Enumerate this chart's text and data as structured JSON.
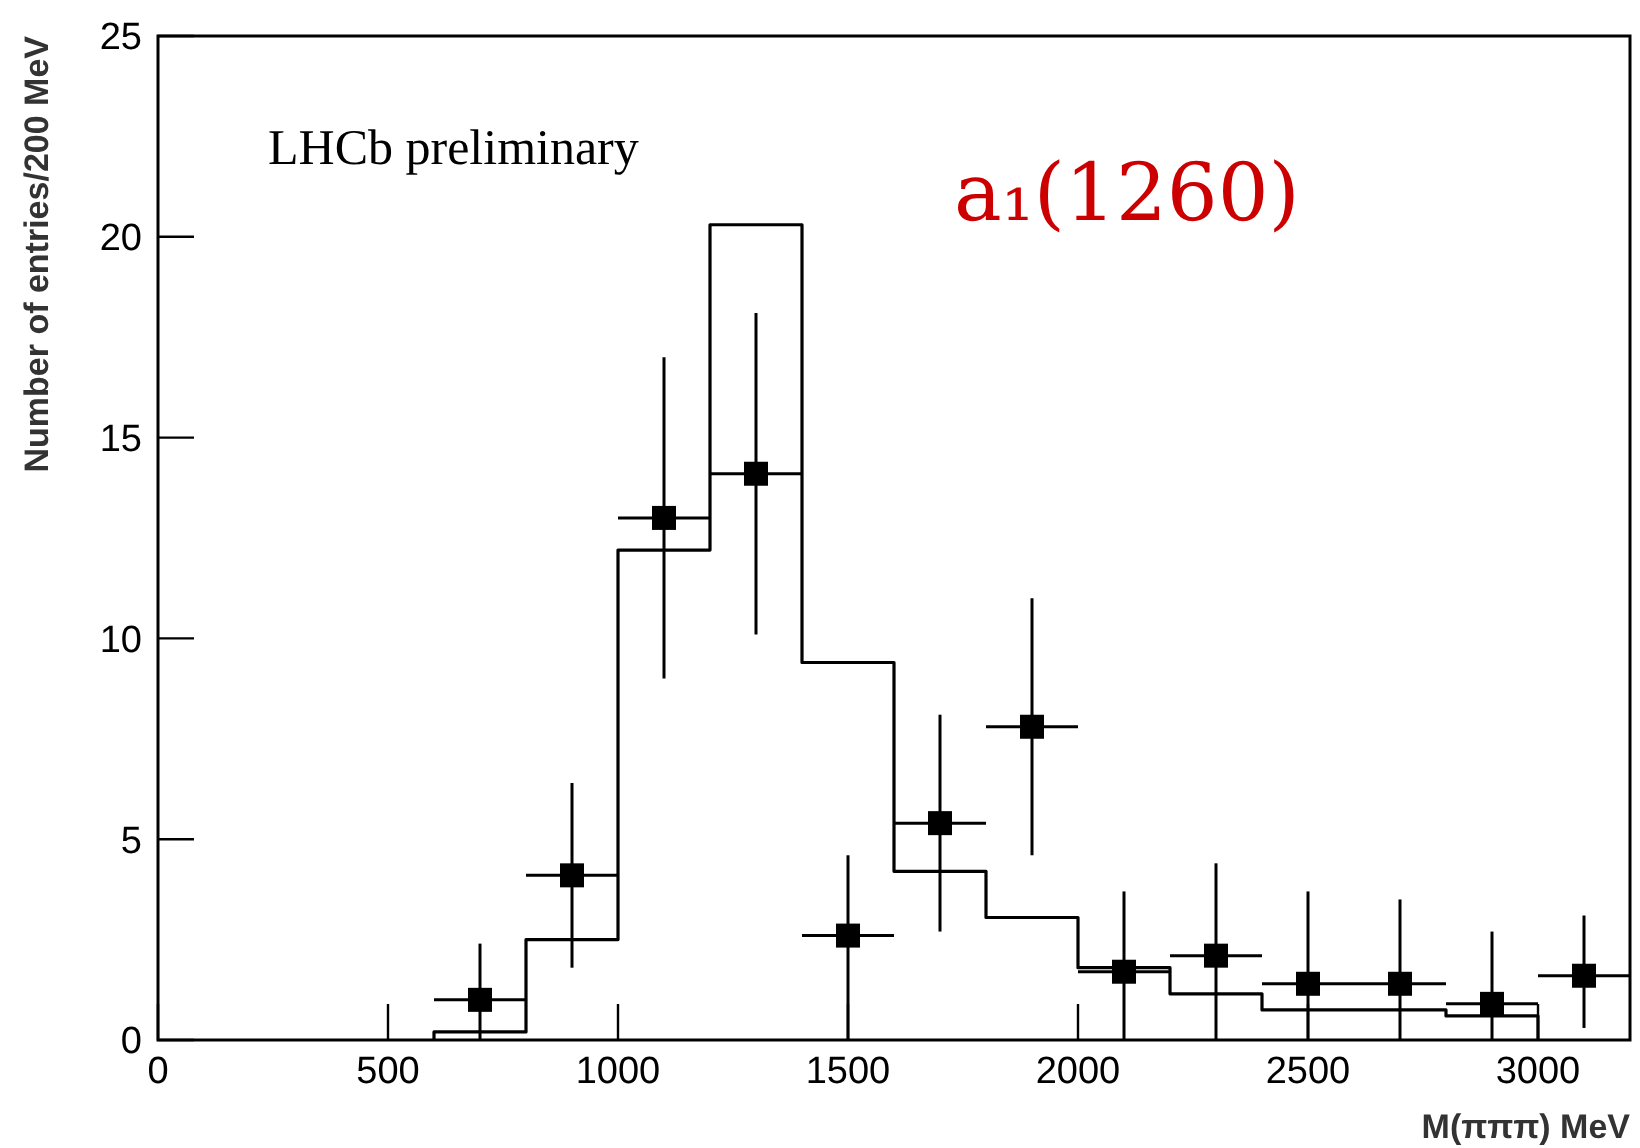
{
  "chart_data": {
    "type": "histogram",
    "xlabel": "M(πππ) MeV",
    "ylabel": "Number of entries/200 MeV",
    "annotations": [
      "LHCb preliminary",
      "a₁(1260)"
    ],
    "xlim": [
      0,
      3200
    ],
    "ylim": [
      0,
      25
    ],
    "xticks": [
      0,
      500,
      1000,
      1500,
      2000,
      2500,
      3000
    ],
    "yticks": [
      0,
      5,
      10,
      15,
      20,
      25
    ],
    "grid": false,
    "series": [
      {
        "type": "histogram",
        "color": "#000000",
        "bins": [
          600,
          800,
          1000,
          1200,
          1400,
          1600,
          1800,
          2000,
          2200,
          2400,
          2600,
          2800,
          3000
        ],
        "values": [
          0.2,
          2.5,
          12.2,
          20.3,
          9.4,
          4.2,
          3.05,
          1.8,
          1.15,
          0.75,
          0.75,
          0.6
        ]
      },
      {
        "type": "scatter",
        "color": "#000000",
        "marker": "square",
        "x": [
          700,
          900,
          1100,
          1300,
          1500,
          1700,
          1900,
          2100,
          2300,
          2500,
          2700,
          2900,
          3100
        ],
        "values": [
          1.0,
          4.1,
          13.0,
          14.1,
          2.6,
          5.4,
          7.8,
          1.7,
          2.1,
          1.4,
          1.4,
          0.9,
          1.6
        ],
        "errors": [
          [
            0,
            2.4
          ],
          [
            1.8,
            6.4
          ],
          [
            9.0,
            17.0
          ],
          [
            10.1,
            18.1
          ],
          [
            0,
            4.6
          ],
          [
            2.7,
            8.1
          ],
          [
            4.6,
            11.0
          ],
          [
            0,
            3.7
          ],
          [
            0,
            4.4
          ],
          [
            0,
            3.7
          ],
          [
            0,
            3.5
          ],
          [
            0,
            2.7
          ],
          [
            0.3,
            3.1
          ]
        ],
        "xerrors": [
          100,
          100,
          100,
          100,
          100,
          100,
          100,
          100,
          100,
          100,
          100,
          100,
          100
        ]
      }
    ]
  }
}
